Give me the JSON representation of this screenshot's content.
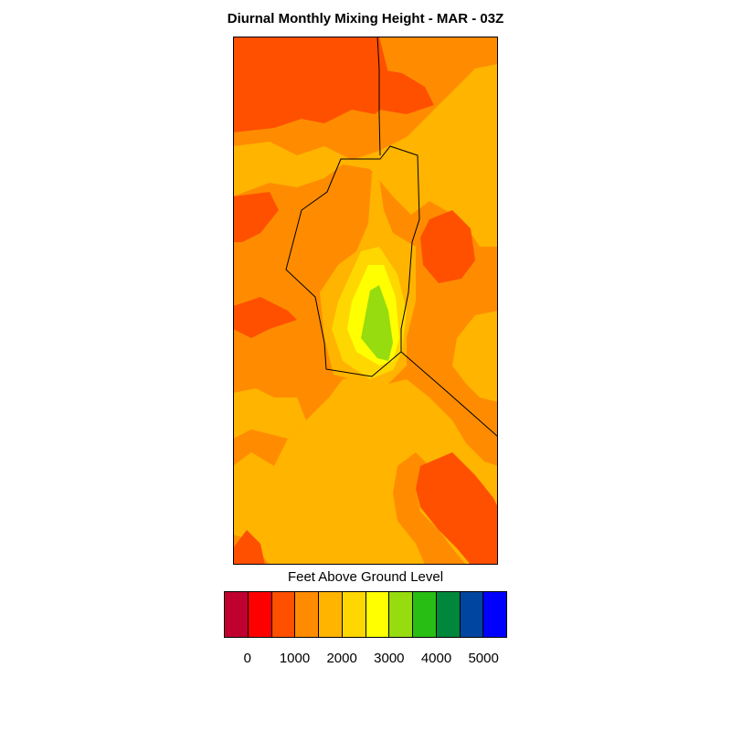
{
  "title": "Diurnal Monthly Mixing Height - MAR - 03Z",
  "legend": {
    "title": "Feet Above Ground Level",
    "colors": [
      "#c0002f",
      "#ff0000",
      "#ff5000",
      "#ff8c00",
      "#ffb400",
      "#ffd700",
      "#ffff00",
      "#96dc0f",
      "#28be14",
      "#00873c",
      "#0046a0",
      "#0000ff"
    ],
    "tick_labels": [
      "0",
      "1000",
      "2000",
      "3000",
      "4000",
      "5000"
    ],
    "tick_values": [
      0,
      1000,
      2000,
      3000,
      4000,
      5000
    ],
    "interval": 500
  },
  "map": {
    "field_colors": {
      "base": "#ff8c00",
      "lower": "#ffb400",
      "mid": "#ffd700",
      "high": "#ffff00",
      "peak": "#96dc0f",
      "low": "#ff5000"
    },
    "boundary_color": "#000000"
  }
}
